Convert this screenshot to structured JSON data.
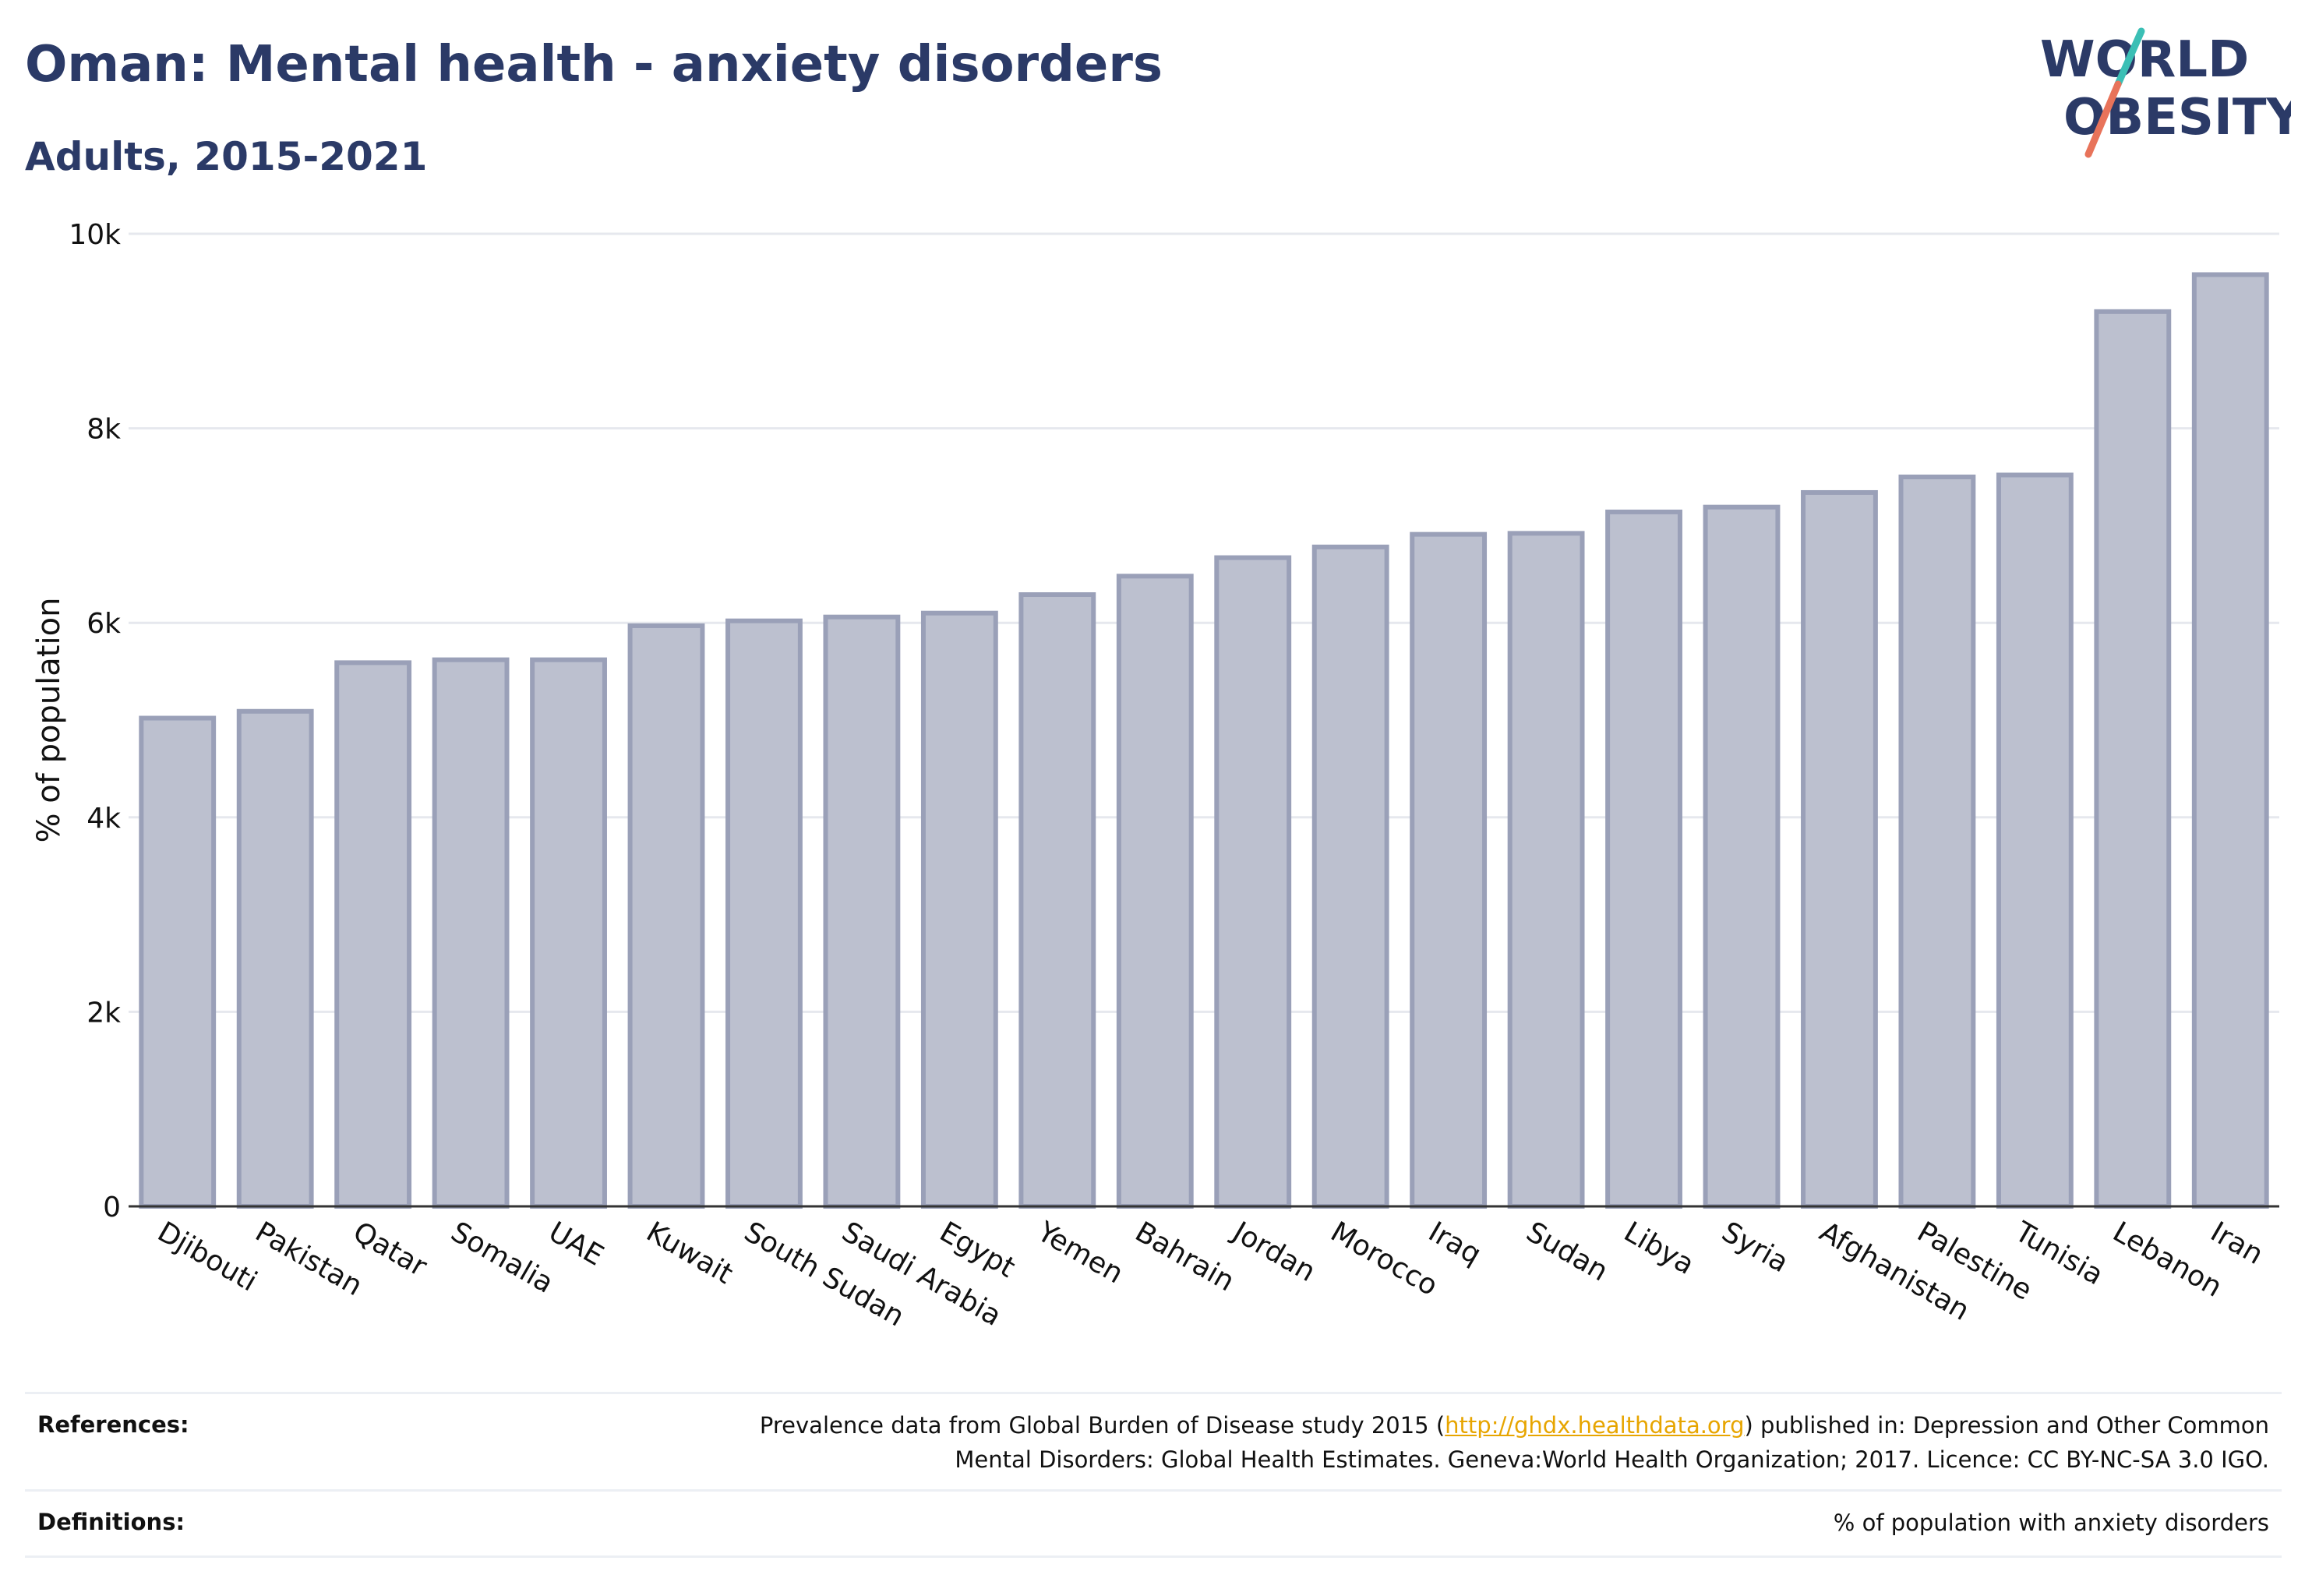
{
  "header": {
    "title": "Oman: Mental health - anxiety disorders",
    "subtitle": "Adults, 2015-2021"
  },
  "logo": {
    "line1": "WORLD",
    "line2": "OBESITY",
    "colors": {
      "text": "#2b3a67",
      "slash_top": "#3bbfb5",
      "slash_bottom": "#e8735a"
    }
  },
  "chart_data": {
    "type": "bar",
    "title": "",
    "xlabel": "",
    "ylabel": "% of population",
    "ylim": [
      0,
      10000
    ],
    "yticks": [
      0,
      2000,
      4000,
      6000,
      8000,
      10000
    ],
    "ytick_labels": [
      "0",
      "2k",
      "4k",
      "6k",
      "8k",
      "10k"
    ],
    "grid": true,
    "categories": [
      "Djibouti",
      "Pakistan",
      "Qatar",
      "Somalia",
      "UAE",
      "Kuwait",
      "South Sudan",
      "Saudi Arabia",
      "Egypt",
      "Yemen",
      "Bahrain",
      "Jordan",
      "Morocco",
      "Iraq",
      "Sudan",
      "Libya",
      "Syria",
      "Afghanistan",
      "Palestine",
      "Tunisia",
      "Lebanon",
      "Iran"
    ],
    "values": [
      5020,
      5090,
      5590,
      5620,
      5620,
      5970,
      6020,
      6060,
      6100,
      6290,
      6480,
      6670,
      6780,
      6910,
      6920,
      7140,
      7190,
      7340,
      7500,
      7520,
      9200,
      9580
    ],
    "colors": {
      "bar_fill": "#bcc0cf",
      "bar_stroke": "#9aa0b8",
      "grid": "#e6e8ee",
      "axis": "#333333"
    }
  },
  "footer": {
    "references_label": "References:",
    "references_line1_pre": "Prevalence data from Global Burden of Disease study 2015 (",
    "references_link": "http://ghdx.healthdata.org",
    "references_line1_post": ") published in: Depression and Other Common",
    "references_line2": "Mental Disorders: Global Health Estimates. Geneva:World Health Organization; 2017. Licence: CC BY-NC-SA 3.0 IGO.",
    "definitions_label": "Definitions:",
    "definitions_text": "% of population with anxiety disorders"
  }
}
